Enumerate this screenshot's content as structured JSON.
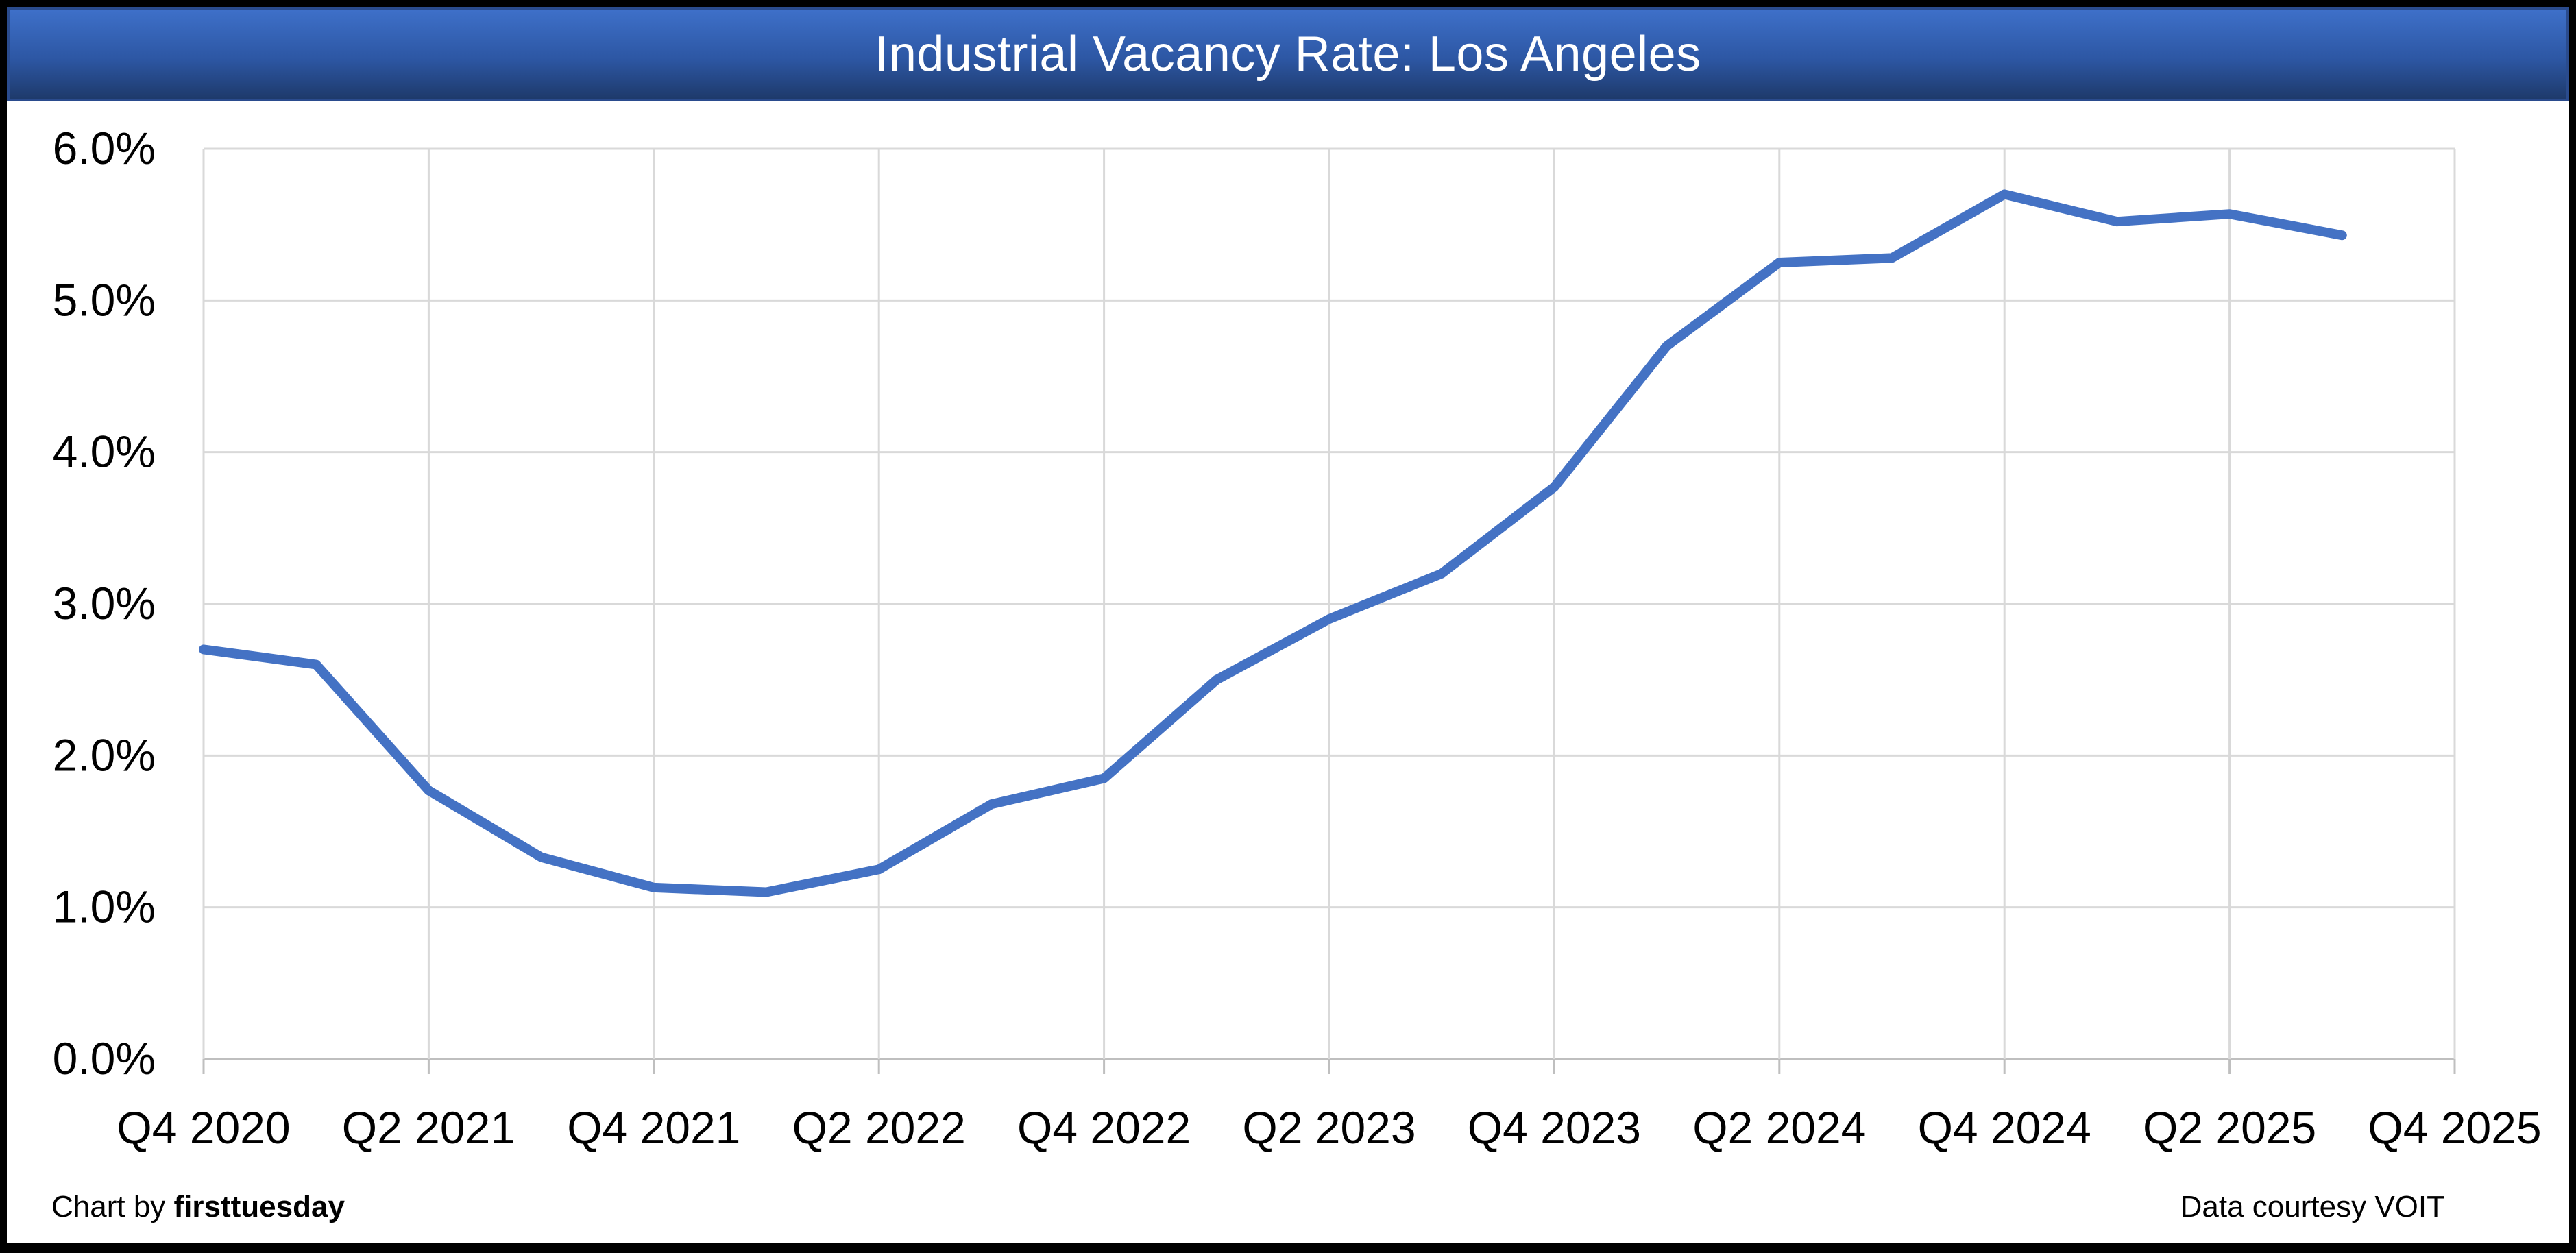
{
  "banner": {
    "title": "Industrial Vacancy Rate: Los Angeles"
  },
  "footer": {
    "credit_prefix": "Chart by ",
    "credit_brand": "firsttuesday",
    "courtesy": "Data courtesy VOIT"
  },
  "colors": {
    "line": "#4472C4",
    "gridline": "#D9D9D9",
    "axis": "#BFBFBF",
    "label_text": "#000000",
    "title_text": "#FFFFFF",
    "banner_top": "#3E70C9",
    "banner_mid": "#2D57A4",
    "banner_bottom": "#1E3A6B",
    "banner_border": "#2A4B8D",
    "frame": "#000000"
  },
  "chart_data": {
    "type": "line",
    "title": "Industrial Vacancy Rate: Los Angeles",
    "x": [
      "Q4 2020",
      "Q1 2021",
      "Q2 2021",
      "Q3 2021",
      "Q4 2021",
      "Q1 2022",
      "Q2 2022",
      "Q3 2022",
      "Q4 2022",
      "Q1 2023",
      "Q2 2023",
      "Q3 2023",
      "Q4 2023",
      "Q1 2024",
      "Q2 2024",
      "Q3 2024",
      "Q4 2024",
      "Q1 2025",
      "Q2 2025",
      "Q3 2025"
    ],
    "values": [
      2.7,
      2.6,
      1.77,
      1.33,
      1.13,
      1.1,
      1.25,
      1.68,
      1.85,
      2.5,
      2.9,
      3.2,
      3.77,
      4.7,
      5.25,
      5.28,
      5.7,
      5.52,
      5.57,
      5.43
    ],
    "x_axis_labels": [
      "Q4 2020",
      "Q2 2021",
      "Q4 2021",
      "Q2 2022",
      "Q4 2022",
      "Q2 2023",
      "Q4 2023",
      "Q2 2024",
      "Q4 2024",
      "Q2 2025",
      "Q4 2025"
    ],
    "x_axis_slots": 21,
    "y_axis_labels": [
      "0.0%",
      "1.0%",
      "2.0%",
      "3.0%",
      "4.0%",
      "5.0%",
      "6.0%"
    ],
    "ylim": [
      0,
      6
    ],
    "grid": true,
    "legend_position": "none"
  }
}
